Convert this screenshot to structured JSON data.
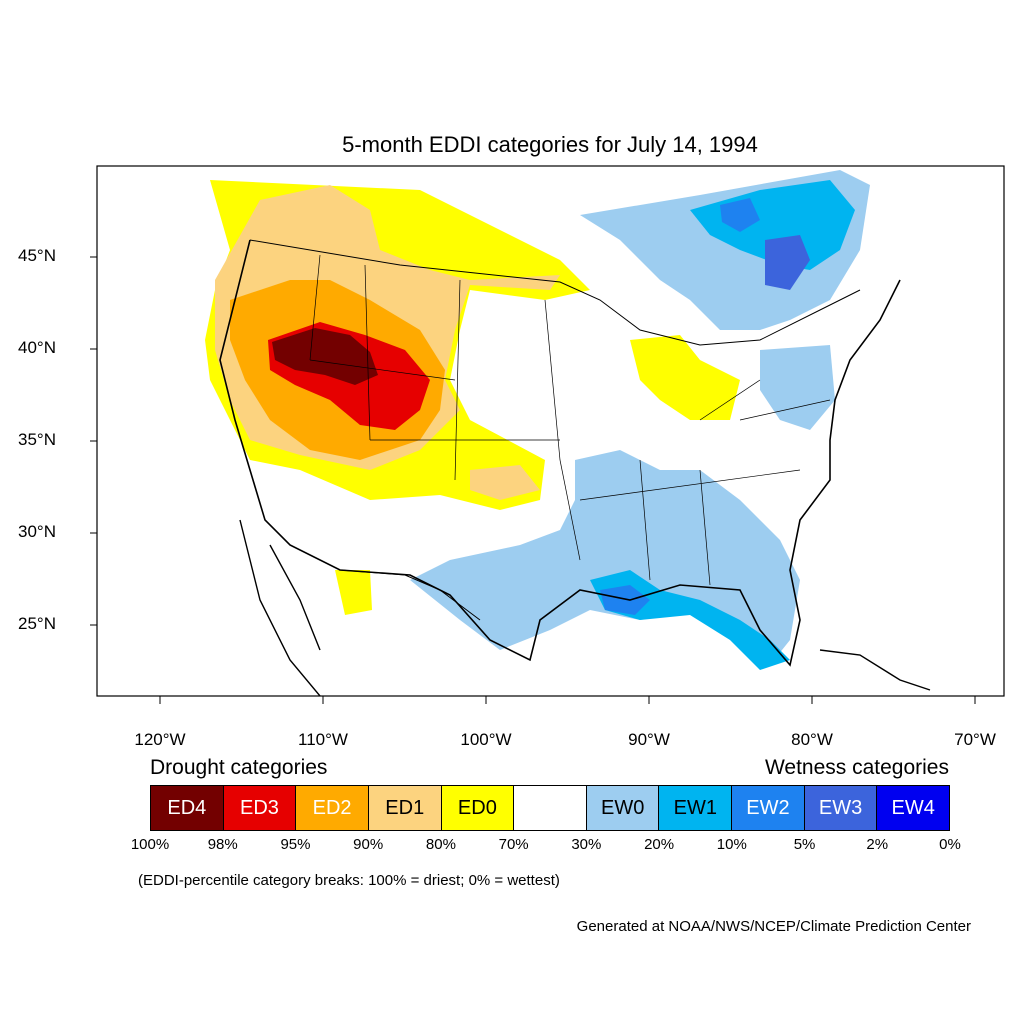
{
  "title": "5-month EDDI categories for July 14, 1994",
  "lat_labels": [
    "45°N",
    "40°N",
    "35°N",
    "30°N",
    "25°N"
  ],
  "lon_labels": [
    "120°W",
    "110°W",
    "100°W",
    "90°W",
    "80°W",
    "70°W"
  ],
  "drought_heading": "Drought categories",
  "wetness_heading": "Wetness categories",
  "categories": [
    {
      "label": "ED4",
      "color": "#730000",
      "text_color": "#ffffff"
    },
    {
      "label": "ED3",
      "color": "#e60000",
      "text_color": "#ffffff"
    },
    {
      "label": "ED2",
      "color": "#ffaa00",
      "text_color": "#ffffff"
    },
    {
      "label": "ED1",
      "color": "#fcd37f",
      "text_color": "#000000"
    },
    {
      "label": "ED0",
      "color": "#ffff00",
      "text_color": "#000000"
    },
    {
      "label": "",
      "color": "#ffffff",
      "text_color": "#000000"
    },
    {
      "label": "EW0",
      "color": "#9dcdf0",
      "text_color": "#000000"
    },
    {
      "label": "EW1",
      "color": "#00b4f0",
      "text_color": "#000000"
    },
    {
      "label": "EW2",
      "color": "#1e82f0",
      "text_color": "#ffffff"
    },
    {
      "label": "EW3",
      "color": "#3c64dc",
      "text_color": "#ffffff"
    },
    {
      "label": "EW4",
      "color": "#0000f0",
      "text_color": "#ffffff"
    }
  ],
  "breakpoints": [
    "100%",
    "98%",
    "95%",
    "90%",
    "80%",
    "70%",
    "30%",
    "20%",
    "10%",
    "5%",
    "2%",
    "0%"
  ],
  "note": "(EDDI-percentile category breaks: 100% = driest; 0% = wettest)",
  "credit": "Generated at NOAA/NWS/NCEP/Climate Prediction Center"
}
